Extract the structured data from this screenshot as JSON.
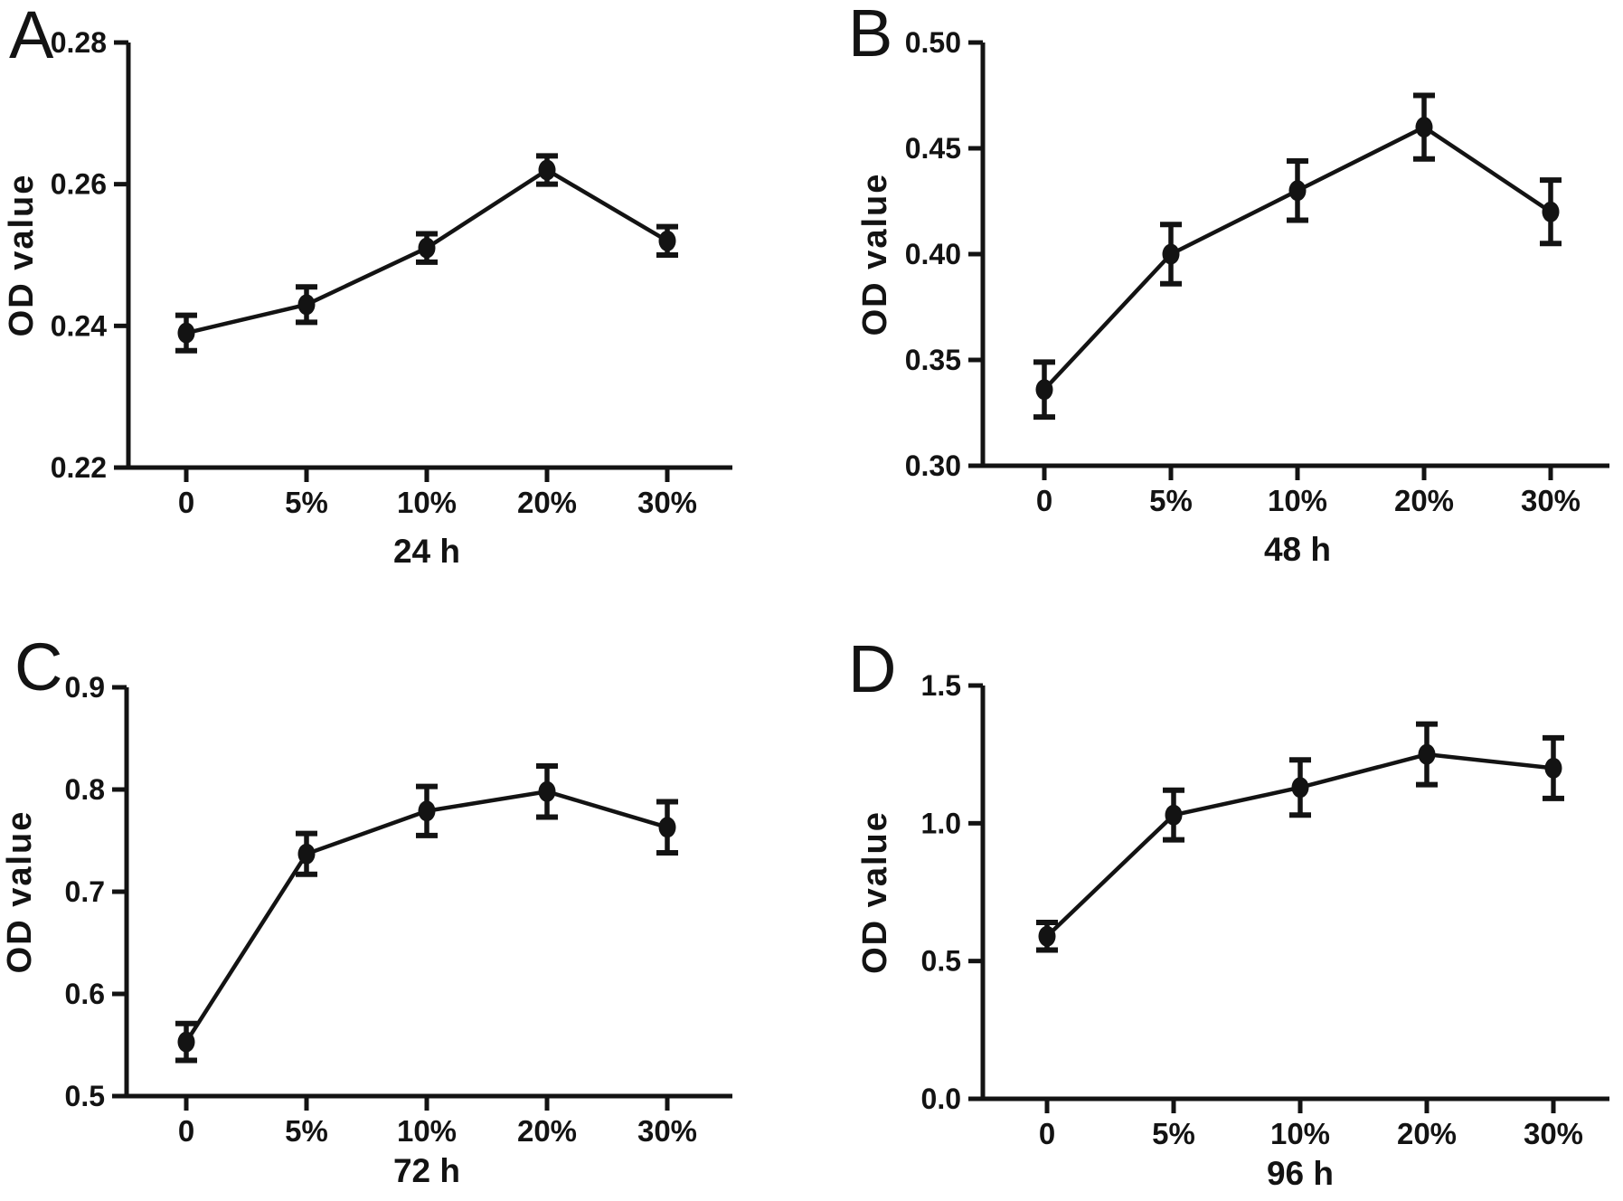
{
  "figure": {
    "background_color": "#ffffff",
    "ink_color": "#131313",
    "panel_letters": [
      "A",
      "B",
      "C",
      "D"
    ],
    "shared_ylabel": "OD value",
    "shared_categories": [
      "0",
      "5%",
      "10%",
      "20%",
      "30%"
    ]
  },
  "chart_data": [
    {
      "type": "line",
      "panel_label": "A",
      "title": "",
      "xlabel": "24 h",
      "ylabel": "OD value",
      "categories": [
        "0",
        "5%",
        "10%",
        "20%",
        "30%"
      ],
      "series": [
        {
          "name": "OD value",
          "values": [
            0.239,
            0.243,
            0.251,
            0.262,
            0.252
          ],
          "errors": [
            0.0025,
            0.0025,
            0.002,
            0.002,
            0.002
          ]
        }
      ],
      "ylim": [
        0.22,
        0.28
      ],
      "yticks": [
        0.22,
        0.24,
        0.26,
        0.28
      ],
      "ytick_labels": [
        "0.22",
        "0.24",
        "0.26",
        "0.28"
      ],
      "grid": false,
      "legend": "none",
      "marker": "filled-circle",
      "error_bars": true
    },
    {
      "type": "line",
      "panel_label": "B",
      "title": "",
      "xlabel": "48 h",
      "ylabel": "OD value",
      "categories": [
        "0",
        "5%",
        "10%",
        "20%",
        "30%"
      ],
      "series": [
        {
          "name": "OD value",
          "values": [
            0.336,
            0.4,
            0.43,
            0.46,
            0.42
          ],
          "errors": [
            0.013,
            0.014,
            0.014,
            0.015,
            0.015
          ]
        }
      ],
      "ylim": [
        0.3,
        0.5
      ],
      "yticks": [
        0.3,
        0.35,
        0.4,
        0.45,
        0.5
      ],
      "ytick_labels": [
        "0.30",
        "0.35",
        "0.40",
        "0.45",
        "0.50"
      ],
      "grid": false,
      "legend": "none",
      "marker": "filled-circle",
      "error_bars": true
    },
    {
      "type": "line",
      "panel_label": "C",
      "title": "",
      "xlabel": "72 h",
      "ylabel": "OD value",
      "categories": [
        "0",
        "5%",
        "10%",
        "20%",
        "30%"
      ],
      "series": [
        {
          "name": "OD value",
          "values": [
            0.553,
            0.737,
            0.779,
            0.798,
            0.763
          ],
          "errors": [
            0.018,
            0.02,
            0.024,
            0.025,
            0.025
          ]
        }
      ],
      "ylim": [
        0.5,
        0.9
      ],
      "yticks": [
        0.5,
        0.6,
        0.7,
        0.8,
        0.9
      ],
      "ytick_labels": [
        "0.5",
        "0.6",
        "0.7",
        "0.8",
        "0.9"
      ],
      "grid": false,
      "legend": "none",
      "marker": "filled-circle",
      "error_bars": true
    },
    {
      "type": "line",
      "panel_label": "D",
      "title": "",
      "xlabel": "96 h",
      "ylabel": "OD value",
      "categories": [
        "0",
        "5%",
        "10%",
        "20%",
        "30%"
      ],
      "series": [
        {
          "name": "OD value",
          "values": [
            0.59,
            1.03,
            1.13,
            1.25,
            1.2
          ],
          "errors": [
            0.05,
            0.09,
            0.1,
            0.11,
            0.11
          ]
        }
      ],
      "ylim": [
        0.0,
        1.5
      ],
      "yticks": [
        0.0,
        0.5,
        1.0,
        1.5
      ],
      "ytick_labels": [
        "0.0",
        "0.5",
        "1.0",
        "1.5"
      ],
      "grid": false,
      "legend": "none",
      "marker": "filled-circle",
      "error_bars": true
    }
  ]
}
